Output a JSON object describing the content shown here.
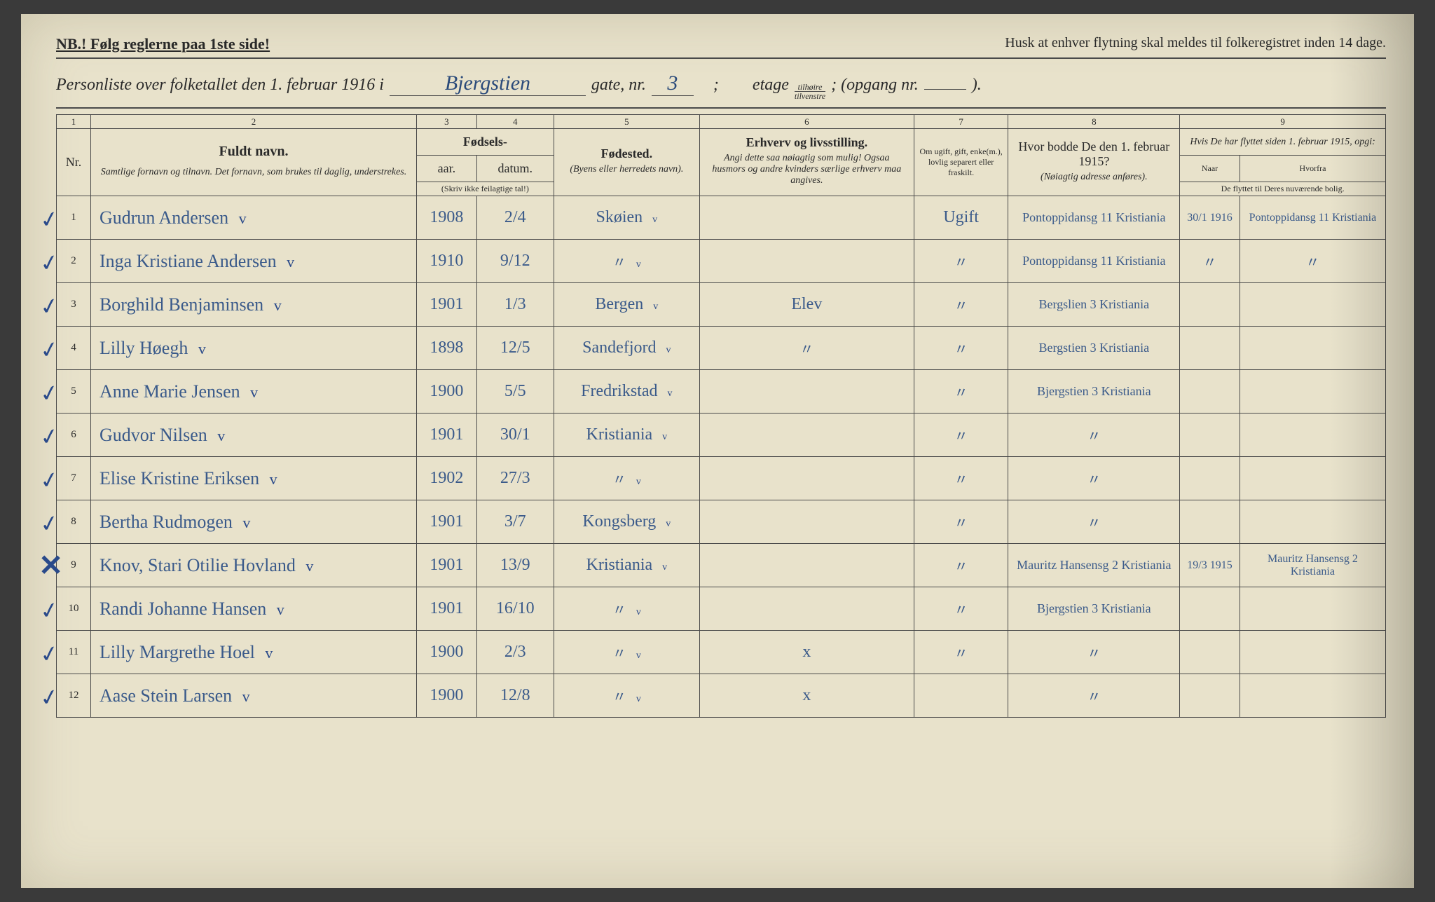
{
  "header": {
    "nb": "NB.! Følg reglerne paa 1ste side!",
    "reminder": "Husk at enhver flytning skal meldes til folkeregistret inden 14 dage.",
    "subtitle_prefix": "Personliste over folketallet den 1. februar 1916 i",
    "street": "Bjergstien",
    "gate_label": "gate, nr.",
    "gate_nr": "3",
    "etage_label": "etage",
    "frac_top": "tilhøire",
    "frac_bot": "tilvenstre",
    "opgang_label": "; (opgang nr.",
    "opgang_val": "",
    "closing": ")."
  },
  "columns": {
    "c1": "1",
    "c2": "2",
    "c3": "3",
    "c4": "4",
    "c5": "5",
    "c6": "6",
    "c7": "7",
    "c8": "8",
    "c9": "9",
    "nr": "Nr.",
    "name_title": "Fuldt navn.",
    "name_sub": "Samtlige fornavn og tilnavn. Det fornavn, som brukes til daglig, understrekes.",
    "birth": "Fødsels-",
    "year": "aar.",
    "date": "datum.",
    "year_note": "(Skriv ikke feilagtige tal!)",
    "birthplace": "Fødested.",
    "birthplace_sub": "(Byens eller herredets navn).",
    "occ_title": "Erhverv og livsstilling.",
    "occ_sub": "Angi dette saa nøiagtig som mulig! Ogsaa husmors og andre kvinders særlige erhverv maa angives.",
    "ms": "Om ugift, gift, enke(m.), lovlig separert eller fraskilt.",
    "prev": "Hvor bodde De den 1. februar 1915?",
    "prev_sub": "(Nøiagtig adresse anføres).",
    "moved": "Hvis De har flyttet siden 1. februar 1915, opgi:",
    "moved_when": "Naar",
    "moved_from": "Hvorfra",
    "moved_note": "De flyttet til Deres nuværende bolig."
  },
  "rows": [
    {
      "mark": "✓",
      "nr": "1",
      "name": "Gudrun Andersen",
      "year": "1908",
      "date": "2/4",
      "bp": "Skøien",
      "occ": "",
      "ms": "Ugift",
      "prev": "Pontoppidansg 11 Kristiania",
      "mw": "30/1 1916",
      "mf": "Pontoppidansg 11 Kristiania"
    },
    {
      "mark": "✓",
      "nr": "2",
      "name": "Inga Kristiane Andersen",
      "year": "1910",
      "date": "9/12",
      "bp": "\"",
      "occ": "",
      "ms": "\"",
      "prev": "Pontoppidansg 11 Kristiania",
      "mw": "\"",
      "mf": "\""
    },
    {
      "mark": "✓",
      "nr": "3",
      "name": "Borghild Benjaminsen",
      "year": "1901",
      "date": "1/3",
      "bp": "Bergen",
      "occ": "Elev",
      "ms": "\"",
      "prev": "Bergslien 3 Kristiania",
      "mw": "",
      "mf": ""
    },
    {
      "mark": "✓",
      "nr": "4",
      "name": "Lilly Høegh",
      "year": "1898",
      "date": "12/5",
      "bp": "Sandefjord",
      "occ": "\"",
      "ms": "\"",
      "prev": "Bergstien 3 Kristiania",
      "mw": "",
      "mf": ""
    },
    {
      "mark": "✓",
      "nr": "5",
      "name": "Anne Marie Jensen",
      "year": "1900",
      "date": "5/5",
      "bp": "Fredrikstad",
      "occ": "",
      "ms": "\"",
      "prev": "Bjergstien 3 Kristiania",
      "mw": "",
      "mf": ""
    },
    {
      "mark": "✓",
      "nr": "6",
      "name": "Gudvor Nilsen",
      "year": "1901",
      "date": "30/1",
      "bp": "Kristiania",
      "occ": "",
      "ms": "\"",
      "prev": "\"",
      "mw": "",
      "mf": ""
    },
    {
      "mark": "✓",
      "nr": "7",
      "name": "Elise Kristine Eriksen",
      "year": "1902",
      "date": "27/3",
      "bp": "\"",
      "occ": "",
      "ms": "\"",
      "prev": "\"",
      "mw": "",
      "mf": ""
    },
    {
      "mark": "✓",
      "nr": "8",
      "name": "Bertha Rudmogen",
      "year": "1901",
      "date": "3/7",
      "bp": "Kongsberg",
      "occ": "",
      "ms": "\"",
      "prev": "\"",
      "mw": "",
      "mf": ""
    },
    {
      "mark": "✕",
      "nr": "9",
      "name": "Knov, Stari Otilie Hovland",
      "year": "1901",
      "date": "13/9",
      "bp": "Kristiania",
      "occ": "",
      "ms": "\"",
      "prev": "Mauritz Hansensg 2 Kristiania",
      "mw": "19/3 1915",
      "mf": "Mauritz Hansensg 2 Kristiania"
    },
    {
      "mark": "✓",
      "nr": "10",
      "name": "Randi Johanne Hansen",
      "year": "1901",
      "date": "16/10",
      "bp": "\"",
      "occ": "",
      "ms": "\"",
      "prev": "Bjergstien 3 Kristiania",
      "mw": "",
      "mf": ""
    },
    {
      "mark": "✓",
      "nr": "11",
      "name": "Lilly Margrethe Hoel",
      "year": "1900",
      "date": "2/3",
      "bp": "\"",
      "occ": "x",
      "ms": "\"",
      "prev": "\"",
      "mw": "",
      "mf": ""
    },
    {
      "mark": "✓",
      "nr": "12",
      "name": "Aase Stein Larsen",
      "year": "1900",
      "date": "12/8",
      "bp": "\"",
      "occ": "x",
      "ms": "",
      "prev": "\"",
      "mw": "",
      "mf": ""
    }
  ],
  "style": {
    "page_bg": "#e8e2cb",
    "ink": "#2a2a2a",
    "hand_ink": "#3a5a8a",
    "border": "#4a4a4a"
  }
}
